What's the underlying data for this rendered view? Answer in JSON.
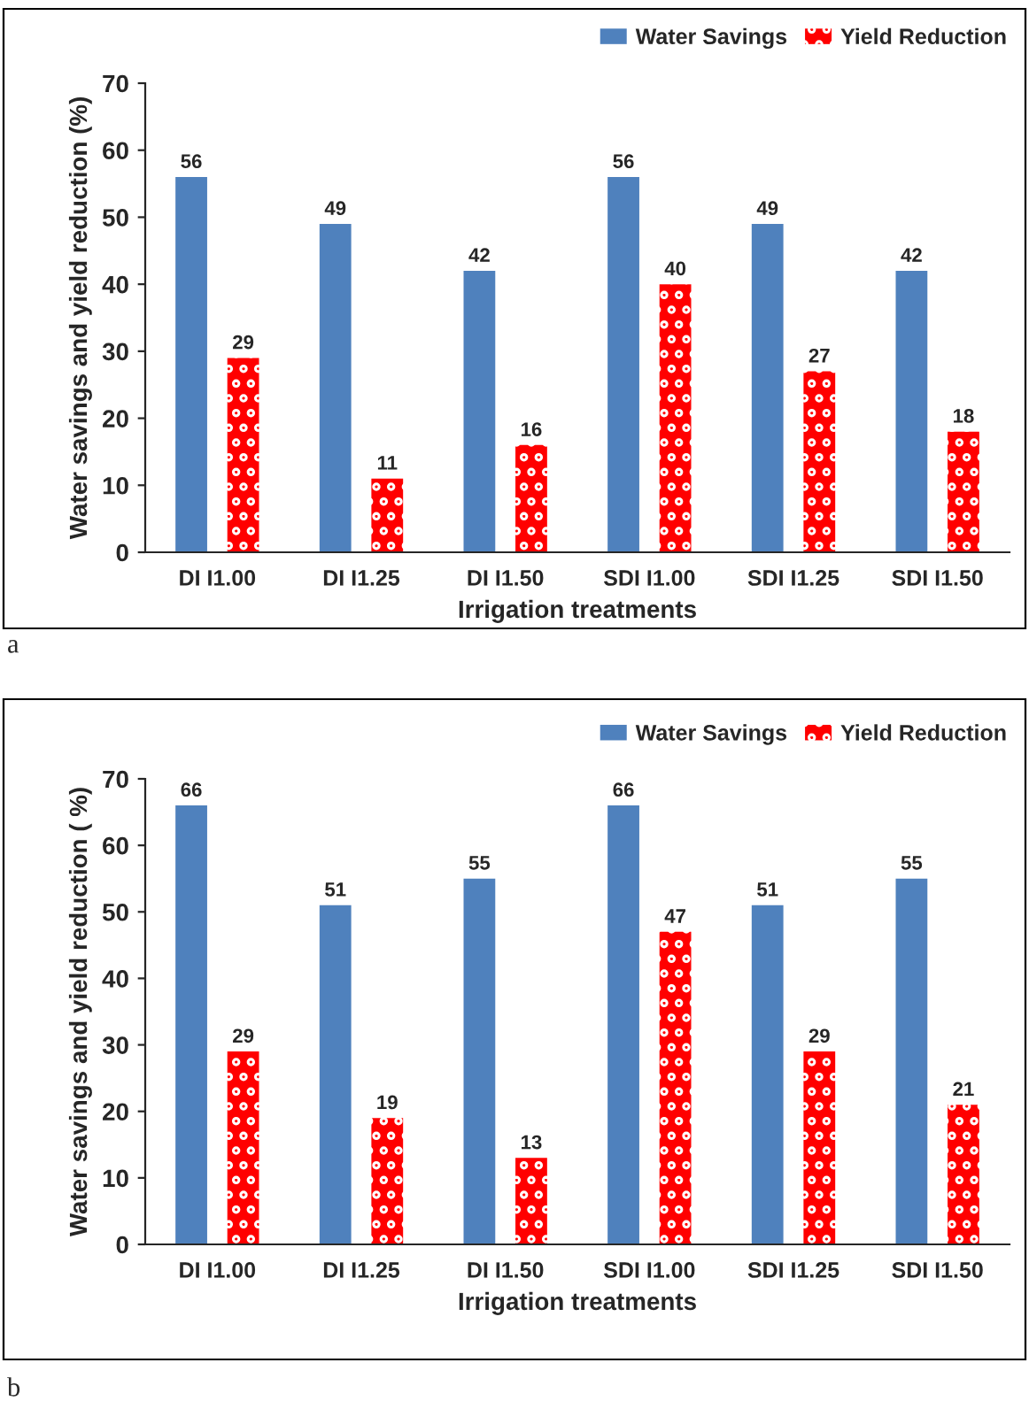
{
  "chart_data": [
    {
      "type": "bar",
      "xlabel": "Irrigation treatments",
      "ylabel": "Water savings and yield reduction (%)",
      "categories": [
        "DI I1.00",
        "DI I1.25",
        "DI I1.50",
        "SDI I1.00",
        "SDI I1.25",
        "SDI I1.50"
      ],
      "series": [
        {
          "name": "Water Savings",
          "color": "#4f81bd",
          "values": [
            56,
            49,
            42,
            56,
            49,
            42
          ]
        },
        {
          "name": "Yield Reduction",
          "color": "#ff0000",
          "values": [
            29,
            11,
            16,
            40,
            27,
            18
          ]
        }
      ],
      "ylim": [
        0,
        70
      ],
      "yticks": [
        0,
        10,
        20,
        30,
        40,
        50,
        60,
        70
      ],
      "data_labels": true,
      "legend": "top right",
      "grid": false,
      "annotations": [
        "a"
      ]
    },
    {
      "type": "bar",
      "xlabel": "Irrigation treatments",
      "ylabel": "Water savings and yield reduction ( %)",
      "categories": [
        "DI I1.00",
        "DI I1.25",
        "DI I1.50",
        "SDI I1.00",
        "SDI I1.25",
        "SDI I1.50"
      ],
      "series": [
        {
          "name": "Water Savings",
          "color": "#4f81bd",
          "values": [
            66,
            51,
            55,
            66,
            51,
            55
          ]
        },
        {
          "name": "Yield Reduction",
          "color": "#ff0000",
          "values": [
            29,
            19,
            13,
            47,
            29,
            21
          ]
        }
      ],
      "ylim": [
        0,
        70
      ],
      "yticks": [
        0,
        10,
        20,
        30,
        40,
        50,
        60,
        70
      ],
      "data_labels": true,
      "legend": "top right",
      "grid": false,
      "annotations": [
        "b"
      ]
    }
  ]
}
